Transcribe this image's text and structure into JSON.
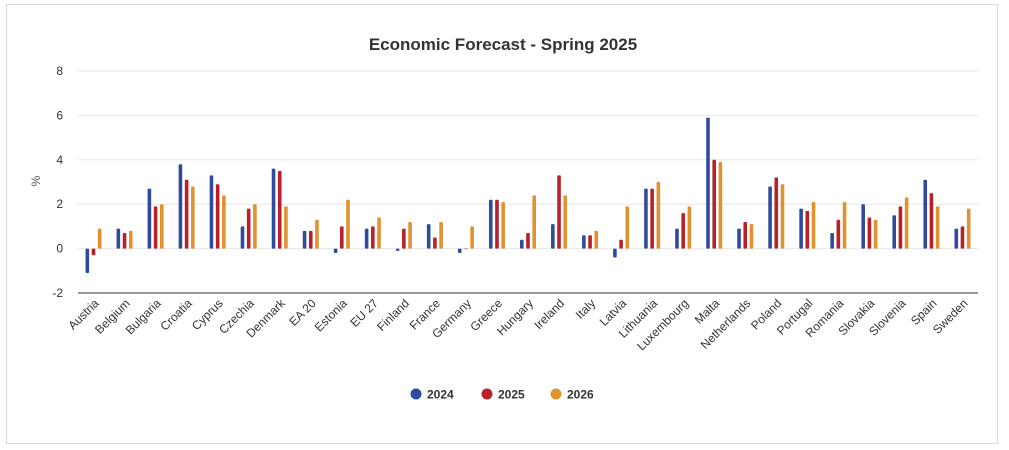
{
  "chart_data": {
    "type": "bar",
    "title": "Economic Forecast - Spring 2025",
    "ylabel": "%",
    "xlabel": "",
    "ylim": [
      -2,
      8
    ],
    "yticks": [
      -2,
      0,
      2,
      4,
      6,
      8
    ],
    "grid": true,
    "legend_position": "bottom",
    "categories": [
      "Austria",
      "Belgium",
      "Bulgaria",
      "Croatia",
      "Cyprus",
      "Czechia",
      "Denmark",
      "EA 20",
      "Estonia",
      "EU 27",
      "Finland",
      "France",
      "Germany",
      "Greece",
      "Hungary",
      "Ireland",
      "Italy",
      "Latvia",
      "Lithuania",
      "Luxembourg",
      "Malta",
      "Netherlands",
      "Poland",
      "Portugal",
      "Romania",
      "Slovakia",
      "Slovenia",
      "Spain",
      "Sweden"
    ],
    "series": [
      {
        "name": "2024",
        "color": "#2f4b9c",
        "values": [
          -1.1,
          0.9,
          2.7,
          3.8,
          3.3,
          1.0,
          3.6,
          0.8,
          -0.2,
          0.9,
          -0.1,
          1.1,
          -0.2,
          2.2,
          0.4,
          1.1,
          0.6,
          -0.4,
          2.7,
          0.9,
          5.9,
          0.9,
          2.8,
          1.8,
          0.7,
          2.0,
          1.5,
          3.1,
          0.9
        ]
      },
      {
        "name": "2025",
        "color": "#b8202a",
        "values": [
          -0.3,
          0.7,
          1.9,
          3.1,
          2.9,
          1.8,
          3.5,
          0.8,
          1.0,
          1.0,
          0.9,
          0.5,
          0.0,
          2.2,
          0.7,
          3.3,
          0.6,
          0.4,
          2.7,
          1.6,
          4.0,
          1.2,
          3.2,
          1.7,
          1.3,
          1.4,
          1.9,
          2.5,
          1.0
        ]
      },
      {
        "name": "2026",
        "color": "#e0922e",
        "values": [
          0.9,
          0.8,
          2.0,
          2.8,
          2.4,
          2.0,
          1.9,
          1.3,
          2.2,
          1.4,
          1.2,
          1.2,
          1.0,
          2.1,
          2.4,
          2.4,
          0.8,
          1.9,
          3.0,
          1.9,
          3.9,
          1.1,
          2.9,
          2.1,
          2.1,
          1.3,
          2.3,
          1.9,
          1.8
        ]
      }
    ]
  }
}
